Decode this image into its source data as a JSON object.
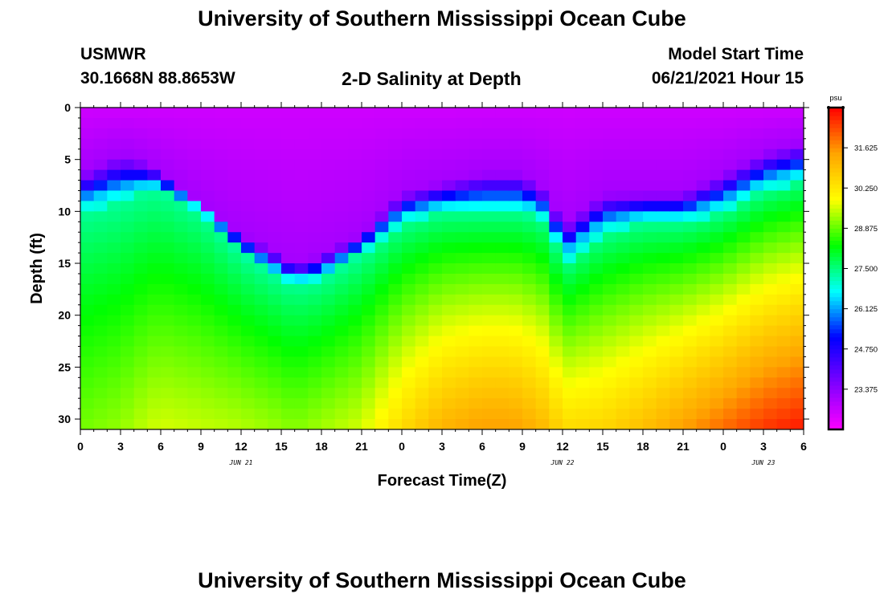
{
  "header": {
    "title_top": "University of Southern Mississippi Ocean Cube",
    "title_bottom": "University of Southern Mississippi Ocean Cube",
    "station": "USMWR",
    "coords": "30.1668N  88.8653W",
    "plot_title": "2-D Salinity at Depth",
    "model_label": "Model Start Time",
    "model_time": "06/21/2021 Hour 15"
  },
  "chart_data": {
    "type": "heatmap",
    "title": "2-D Salinity at Depth",
    "xlabel": "Forecast Time(Z)",
    "ylabel": "Depth (ft)",
    "xlim": [
      0,
      54
    ],
    "ylim": [
      0,
      31
    ],
    "y_inverted": true,
    "x_ticks": [
      0,
      3,
      6,
      9,
      12,
      15,
      18,
      21,
      24,
      27,
      30,
      33,
      36,
      39,
      42,
      45,
      48,
      51,
      54
    ],
    "x_tick_labels": [
      "0",
      "3",
      "6",
      "9",
      "12",
      "15",
      "18",
      "21",
      "0",
      "3",
      "6",
      "9",
      "12",
      "15",
      "18",
      "21",
      "0",
      "3",
      "6"
    ],
    "y_ticks": [
      0,
      5,
      10,
      15,
      20,
      25,
      30
    ],
    "y_tick_labels": [
      "0",
      "5",
      "10",
      "15",
      "20",
      "25",
      "30"
    ],
    "date_labels": [
      {
        "x": 12,
        "text": "JUN 21"
      },
      {
        "x": 36,
        "text": "JUN 22"
      },
      {
        "x": 51,
        "text": "JUN 23"
      }
    ],
    "colorbar": {
      "unit": "psu",
      "min": 22.0,
      "max": 33.0,
      "ticks": [
        23.375,
        24.75,
        26.125,
        27.5,
        28.875,
        30.25,
        31.625
      ],
      "tick_labels": [
        "23.375",
        "24.750",
        "26.125",
        "27.500",
        "28.875",
        "30.250",
        "31.625"
      ],
      "stops": [
        "#ff00ff",
        "#8000ff",
        "#0000ff",
        "#00ffff",
        "#00ff00",
        "#ffff00",
        "#ffa500",
        "#ff0000"
      ]
    },
    "time_hours": [
      0,
      3,
      5,
      6,
      9,
      12,
      15,
      16,
      18,
      21,
      24,
      27,
      30,
      32,
      33,
      35,
      36,
      39,
      42,
      45,
      48,
      51,
      54
    ],
    "halocline_depth_ft": [
      10,
      9,
      8,
      8,
      10,
      14,
      16.5,
      17,
      16.5,
      14,
      11,
      10,
      10,
      10,
      10,
      11,
      15,
      12,
      11,
      11,
      10,
      8,
      7
    ],
    "fresh_layer_depth_ft": [
      6,
      4,
      5,
      6,
      9,
      12,
      14,
      15,
      14,
      12,
      8,
      7,
      6,
      6,
      6,
      8,
      11,
      8,
      8,
      8,
      6,
      4,
      3
    ],
    "bottom_salinity_psu": [
      29.0,
      29.2,
      29.5,
      29.6,
      29.5,
      29.4,
      29.2,
      29.1,
      29.3,
      29.6,
      30.5,
      31.2,
      31.5,
      31.5,
      31.4,
      31.0,
      30.5,
      30.6,
      31.0,
      31.5,
      32.0,
      32.5,
      32.8
    ]
  }
}
